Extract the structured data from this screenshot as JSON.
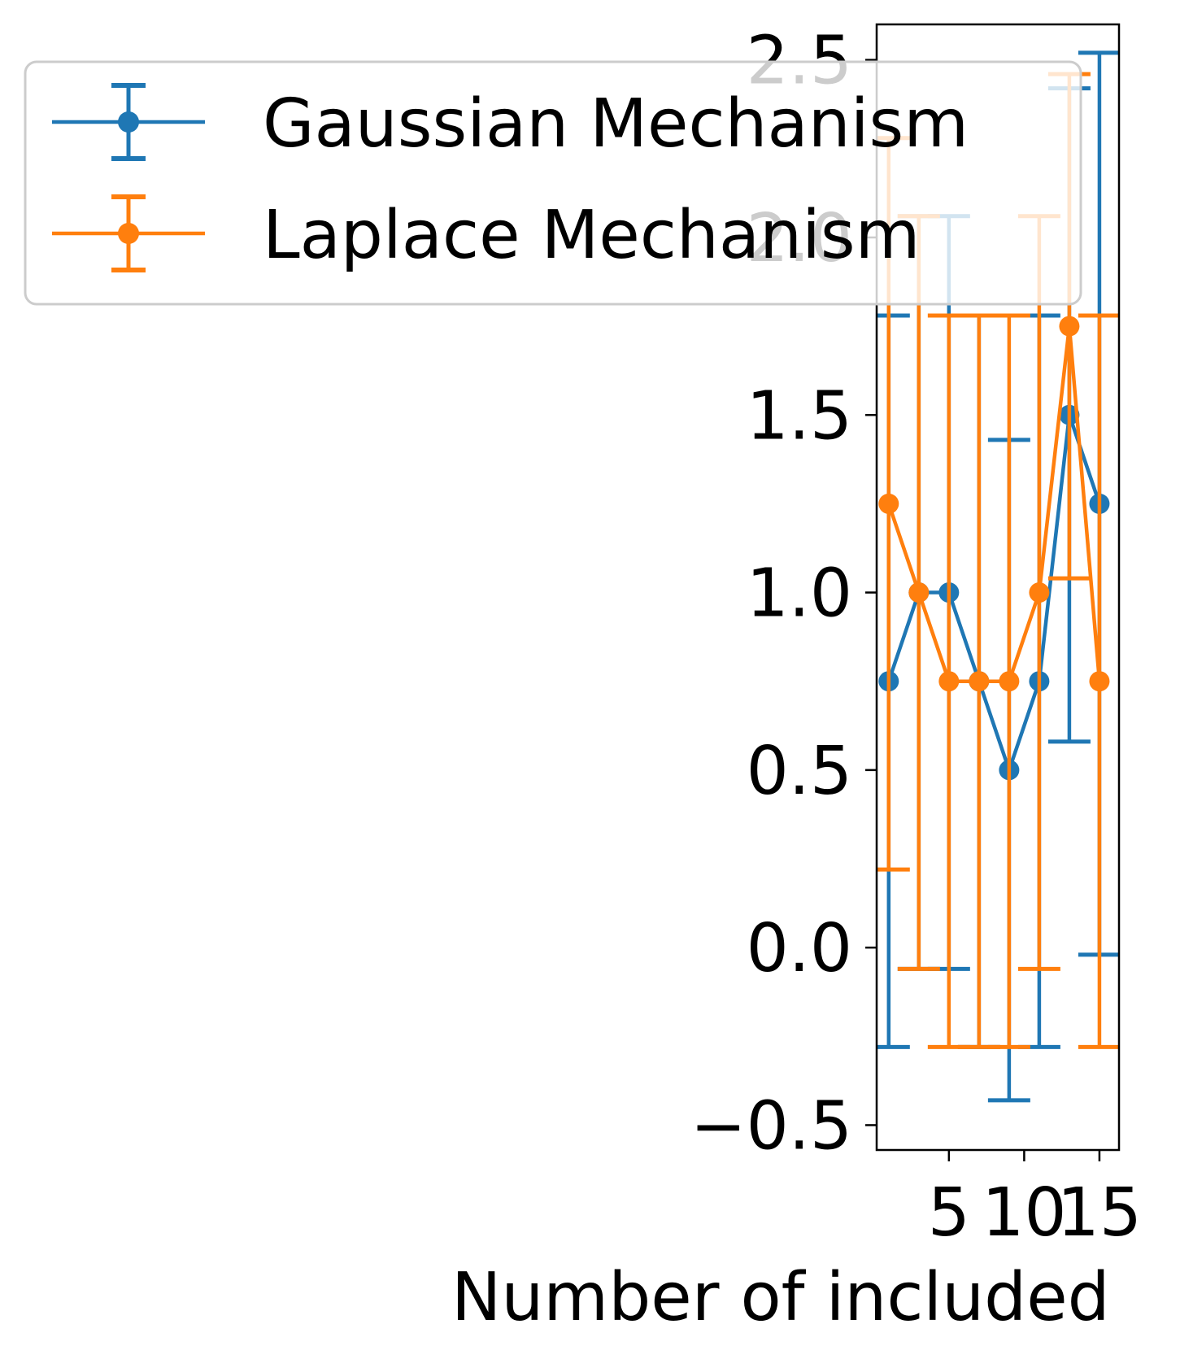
{
  "chart_data": {
    "type": "line",
    "title": "",
    "xlabel": "Number of included",
    "ylabel": "",
    "xlim": [
      0.2,
      16.3
    ],
    "ylim": [
      -0.57,
      2.6
    ],
    "x_ticks": [
      5,
      10,
      15
    ],
    "x_tick_labels": [
      "5",
      "10",
      "15"
    ],
    "y_ticks": [
      -0.5,
      0.0,
      0.5,
      1.0,
      1.5,
      2.0,
      2.5
    ],
    "y_tick_labels": [
      "−0.5",
      "0.0",
      "0.5",
      "1.0",
      "1.5",
      "2.0",
      "2.5"
    ],
    "grid": false,
    "legend_position": "upper-left",
    "series": [
      {
        "name": "Gaussian Mechanism",
        "color": "#1f77b4",
        "x": [
          1,
          3,
          5,
          7,
          9,
          11,
          13,
          15
        ],
        "y": [
          0.75,
          1.0,
          1.0,
          0.75,
          0.5,
          0.75,
          1.5,
          1.25
        ],
        "yerr": [
          1.03,
          1.06,
          1.06,
          1.03,
          0.93,
          1.03,
          0.92,
          1.27
        ],
        "error_bars": true
      },
      {
        "name": "Laplace Mechanism",
        "color": "#ff7f0e",
        "x": [
          1,
          3,
          5,
          7,
          9,
          11,
          13,
          15
        ],
        "y": [
          1.25,
          1.0,
          0.75,
          0.75,
          0.75,
          1.0,
          1.75,
          0.75
        ],
        "yerr": [
          1.03,
          1.06,
          1.03,
          1.03,
          1.03,
          1.06,
          0.71,
          1.03
        ],
        "error_bars": true
      }
    ]
  }
}
